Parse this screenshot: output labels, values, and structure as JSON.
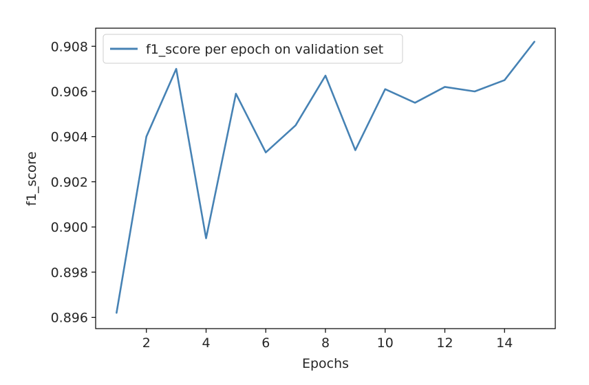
{
  "chart_data": {
    "type": "line",
    "title": "",
    "xlabel": "Epochs",
    "ylabel": "f1_score",
    "xlim": [
      0.3,
      15.7
    ],
    "ylim": [
      0.8955,
      0.9088
    ],
    "xticks": [
      2,
      4,
      6,
      8,
      10,
      12,
      14
    ],
    "xtick_labels": [
      "2",
      "4",
      "6",
      "8",
      "10",
      "12",
      "14"
    ],
    "yticks": [
      0.896,
      0.898,
      0.9,
      0.902,
      0.904,
      0.906,
      0.908
    ],
    "ytick_labels": [
      "0.896",
      "0.898",
      "0.900",
      "0.902",
      "0.904",
      "0.906",
      "0.908"
    ],
    "grid": false,
    "legend": {
      "position": "top-left"
    },
    "series": [
      {
        "name": "f1_score per epoch on validation set",
        "color": "#4682b4",
        "x": [
          1,
          2,
          3,
          4,
          5,
          6,
          7,
          8,
          9,
          10,
          11,
          12,
          13,
          14,
          15
        ],
        "y": [
          0.8962,
          0.904,
          0.907,
          0.8995,
          0.9059,
          0.9033,
          0.9045,
          0.9067,
          0.9034,
          0.9061,
          0.9055,
          0.9062,
          0.906,
          0.9065,
          0.9082
        ]
      }
    ]
  }
}
